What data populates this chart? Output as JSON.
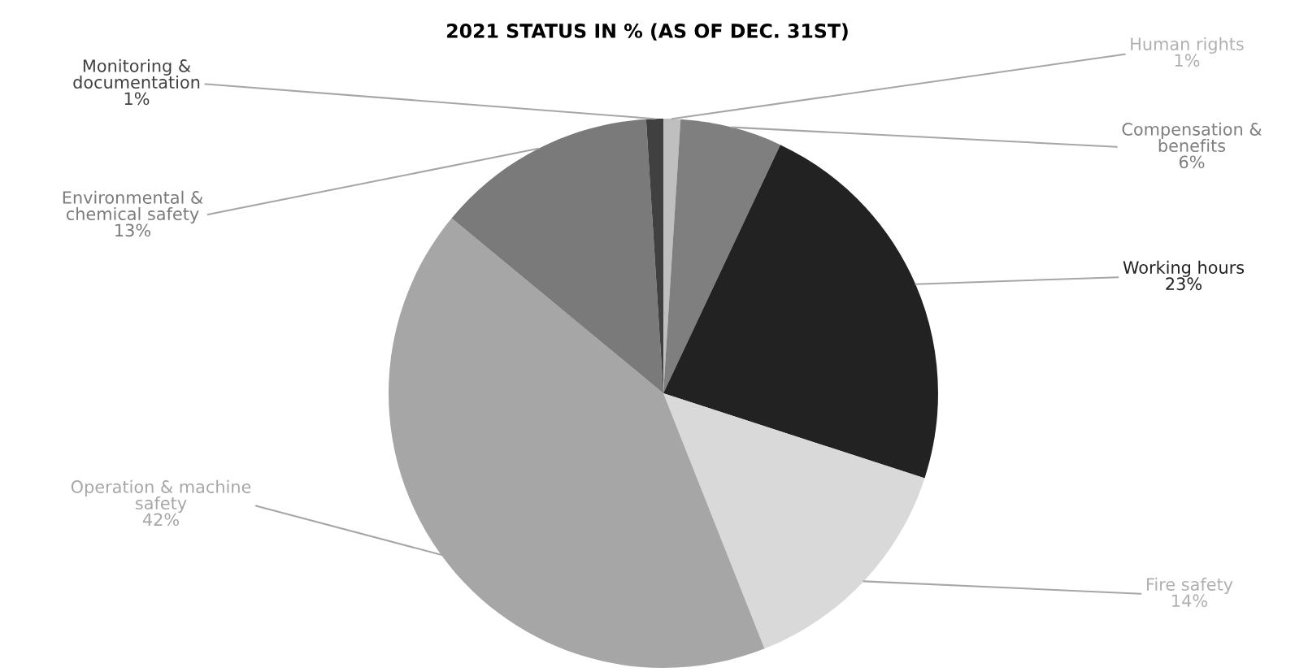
{
  "chart_data": {
    "type": "pie",
    "title": "2021 STATUS IN % (AS OF DEC. 31ST)",
    "categories": [
      "Human rights",
      "Compensation &\nbenefits",
      "Working hours",
      "Fire safety",
      "Operation & machine\nsafety",
      "Environmental &\nchemical safety",
      "Monitoring &\ndocumentation"
    ],
    "values": [
      1,
      6,
      23,
      14,
      42,
      13,
      1
    ],
    "value_labels": [
      "1%",
      "6%",
      "23%",
      "14%",
      "42%",
      "13%",
      "1%"
    ],
    "colors": [
      "#bfbfbf",
      "#7f7f7f",
      "#222222",
      "#d9d9d9",
      "#a6a6a6",
      "#7a7a7a",
      "#404040"
    ],
    "legend": false
  }
}
